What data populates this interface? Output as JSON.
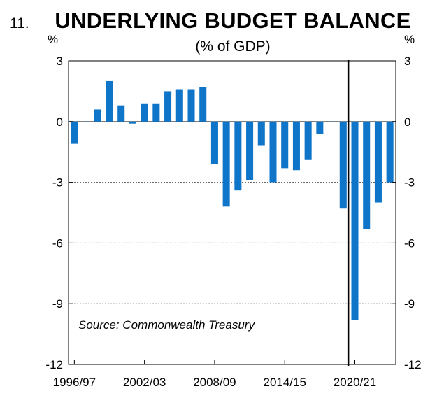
{
  "chart_number": "11.",
  "chart_data": {
    "type": "bar",
    "title": "UNDERLYING BUDGET BALANCE",
    "subtitle": "(% of GDP)",
    "ylabel_left": "%",
    "ylabel_right": "%",
    "ylim": [
      -12,
      3
    ],
    "yticks": [
      "3",
      "0",
      "-3",
      "-6",
      "-9",
      "-12"
    ],
    "ytick_values": [
      3,
      0,
      -3,
      -6,
      -9,
      -12
    ],
    "xtick_labels": [
      "1996/97",
      "2002/03",
      "2008/09",
      "2014/15",
      "2020/21"
    ],
    "xtick_indices": [
      0,
      6,
      12,
      18,
      24
    ],
    "categories": [
      "1996/97",
      "1997/98",
      "1998/99",
      "1999/00",
      "2000/01",
      "2001/02",
      "2002/03",
      "2003/04",
      "2004/05",
      "2005/06",
      "2006/07",
      "2007/08",
      "2008/09",
      "2009/10",
      "2010/11",
      "2011/12",
      "2012/13",
      "2013/14",
      "2014/15",
      "2015/16",
      "2016/17",
      "2017/18",
      "2018/19",
      "2019/20",
      "2020/21",
      "2021/22",
      "2022/23",
      "2023/24"
    ],
    "values": [
      -1.1,
      0.0,
      0.6,
      2.0,
      0.8,
      -0.1,
      0.9,
      0.9,
      1.5,
      1.6,
      1.6,
      1.7,
      -2.1,
      -4.2,
      -3.4,
      -2.9,
      -1.2,
      -3.0,
      -2.3,
      -2.4,
      -1.9,
      -0.6,
      0.0,
      -4.3,
      -9.8,
      -5.3,
      -4.0,
      -3.0
    ],
    "forecast_divider_after": "2019/20",
    "bar_color": "#0F75C9",
    "annotation": "Source: Commonwealth Treasury",
    "grid": "dotted"
  }
}
